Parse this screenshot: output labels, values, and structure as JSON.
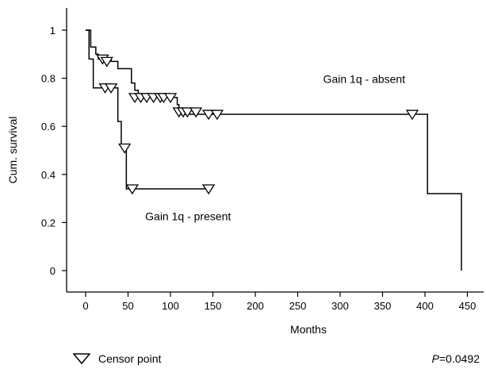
{
  "chart_data": {
    "type": "line",
    "subtype": "kaplan-meier",
    "xlabel": "Months",
    "ylabel": "Cum. survival",
    "xlim": [
      0,
      450
    ],
    "ylim": [
      0,
      1
    ],
    "x_ticks": [
      0,
      50,
      100,
      150,
      200,
      250,
      300,
      350,
      400,
      450
    ],
    "y_ticks": [
      0,
      0.2,
      0.4,
      0.6,
      0.8,
      1
    ],
    "x_tick_labels": [
      "0",
      "50",
      "100",
      "150",
      "200",
      "250",
      "300",
      "350",
      "400",
      "450"
    ],
    "y_tick_labels": [
      "0",
      "0.2",
      "0.4",
      "0.6",
      "0.8",
      "1"
    ],
    "grid": false,
    "series": [
      {
        "name": "Gain 1q - absent",
        "steps": [
          [
            0,
            1.0
          ],
          [
            6,
            0.93
          ],
          [
            12,
            0.9
          ],
          [
            15,
            0.88
          ],
          [
            30,
            0.87
          ],
          [
            38,
            0.84
          ],
          [
            54,
            0.78
          ],
          [
            58,
            0.75
          ],
          [
            62,
            0.72
          ],
          [
            108,
            0.69
          ],
          [
            110,
            0.66
          ],
          [
            112,
            0.65
          ],
          [
            403,
            0.65
          ],
          [
            403,
            0.32
          ],
          [
            443,
            0.32
          ],
          [
            443,
            0.0
          ]
        ],
        "censor_points": [
          [
            20,
            0.88
          ],
          [
            25,
            0.87
          ],
          [
            58,
            0.72
          ],
          [
            65,
            0.72
          ],
          [
            72,
            0.72
          ],
          [
            80,
            0.72
          ],
          [
            88,
            0.72
          ],
          [
            92,
            0.72
          ],
          [
            100,
            0.72
          ],
          [
            110,
            0.66
          ],
          [
            115,
            0.66
          ],
          [
            120,
            0.66
          ],
          [
            130,
            0.66
          ],
          [
            145,
            0.65
          ],
          [
            155,
            0.65
          ],
          [
            385,
            0.65
          ]
        ]
      },
      {
        "name": "Gain 1q - present",
        "steps": [
          [
            0,
            1.0
          ],
          [
            4,
            0.88
          ],
          [
            9,
            0.76
          ],
          [
            36,
            0.76
          ],
          [
            38,
            0.62
          ],
          [
            42,
            0.52
          ],
          [
            48,
            0.34
          ],
          [
            52,
            0.34
          ],
          [
            147,
            0.34
          ]
        ],
        "censor_points": [
          [
            23,
            0.76
          ],
          [
            30,
            0.76
          ],
          [
            46,
            0.51
          ],
          [
            55,
            0.34
          ],
          [
            145,
            0.34
          ]
        ]
      }
    ],
    "annotations": [
      {
        "text": "Gain 1q - absent",
        "x": 280,
        "y": 0.78
      },
      {
        "text": "Gain 1q - present",
        "x": 145,
        "y": 0.21
      }
    ],
    "legend": {
      "label": "Censor point",
      "placement": "bottom-left"
    },
    "pvalue": {
      "prefix": "P",
      "text": "=0.0492"
    }
  }
}
